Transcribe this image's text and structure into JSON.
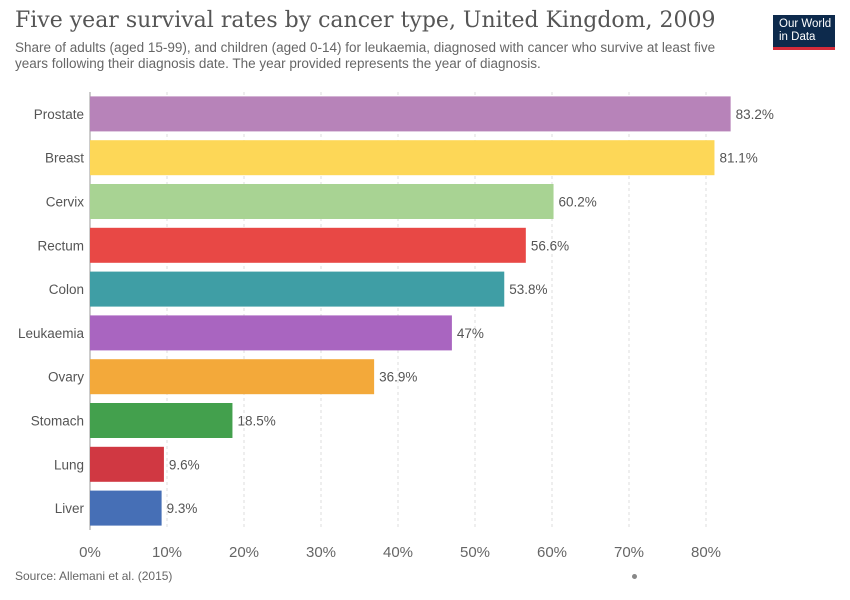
{
  "header": {
    "title": "Five year survival rates by cancer type, United Kingdom, 2009",
    "subtitle": "Share of adults (aged 15-99), and children (aged 0-14) for leukaemia, diagnosed with cancer who survive at least five years following their diagnosis date. The year provided represents the year of diagnosis."
  },
  "logo": {
    "line1": "Our World",
    "line2": "in Data"
  },
  "footer": {
    "source": "Source: Allemani et al. (2015)"
  },
  "chart_data": {
    "type": "bar",
    "orientation": "horizontal",
    "categories": [
      "Prostate",
      "Breast",
      "Cervix",
      "Rectum",
      "Colon",
      "Leukaemia",
      "Ovary",
      "Stomach",
      "Lung",
      "Liver"
    ],
    "values": [
      83.2,
      81.1,
      60.2,
      56.6,
      53.8,
      47,
      36.9,
      18.5,
      9.6,
      9.3
    ],
    "value_labels": [
      "83.2%",
      "81.1%",
      "60.2%",
      "56.6%",
      "53.8%",
      "47%",
      "36.9%",
      "18.5%",
      "9.6%",
      "9.3%"
    ],
    "colors": [
      "#b783b9",
      "#fdd757",
      "#a8d393",
      "#e84845",
      "#3f9ea5",
      "#a965c0",
      "#f3a93a",
      "#43a04d",
      "#d03842",
      "#466fb6"
    ],
    "xlim": [
      0,
      80
    ],
    "xticks": [
      0,
      10,
      20,
      30,
      40,
      50,
      60,
      70,
      80
    ],
    "xtick_labels": [
      "0%",
      "10%",
      "20%",
      "30%",
      "40%",
      "50%",
      "60%",
      "70%",
      "80%"
    ],
    "grid": true
  }
}
